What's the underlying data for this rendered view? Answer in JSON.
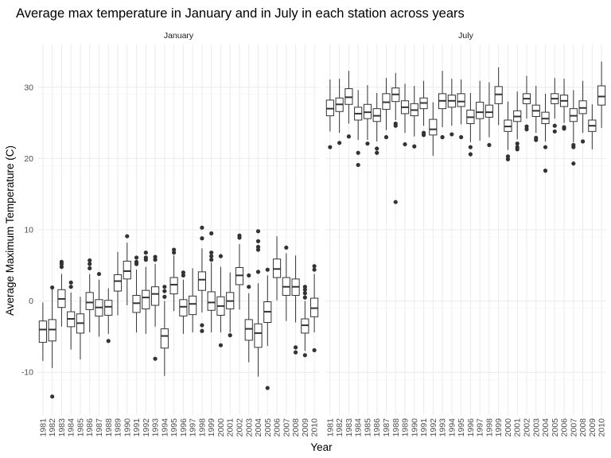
{
  "chart_data": {
    "type": "boxplot",
    "title": "Average max temperature in January and in July in each station across years",
    "xlabel": "Year",
    "ylabel": "Average Maximum Temperature (C)",
    "ylim": [
      -16,
      36
    ],
    "y_ticks": [
      -10,
      0,
      10,
      20,
      30
    ],
    "grid": true,
    "facets": [
      "January",
      "July"
    ],
    "years": [
      "1981",
      "1982",
      "1983",
      "1984",
      "1985",
      "1986",
      "1987",
      "1988",
      "1989",
      "1990",
      "1991",
      "1992",
      "1993",
      "1994",
      "1995",
      "1996",
      "1997",
      "1998",
      "1999",
      "2000",
      "2001",
      "2002",
      "2003",
      "2004",
      "2005",
      "2006",
      "2007",
      "2008",
      "2009",
      "2010"
    ],
    "series": [
      {
        "facet": "January",
        "boxes": [
          {
            "year": "1981",
            "q1": -5.8,
            "med": -4,
            "q3": -2.8,
            "lo": -8.4,
            "hi": -0.2,
            "out": []
          },
          {
            "year": "1982",
            "q1": -5.6,
            "med": -4,
            "q3": -2.6,
            "lo": -9.4,
            "hi": 1.8,
            "out": [
              -13.4,
              1.9
            ]
          },
          {
            "year": "1983",
            "q1": -0.9,
            "med": 0.3,
            "q3": 1.6,
            "lo": -3.6,
            "hi": 3.8,
            "out": [
              4.8,
              5.2,
              5.5
            ]
          },
          {
            "year": "1984",
            "q1": -3.6,
            "med": -2.5,
            "q3": -1.5,
            "lo": -6.8,
            "hi": 1.2,
            "out": [
              2,
              2.6
            ]
          },
          {
            "year": "1985",
            "q1": -4.5,
            "med": -3.1,
            "q3": -1.8,
            "lo": -8.2,
            "hi": 0.6,
            "out": []
          },
          {
            "year": "1986",
            "q1": -1.2,
            "med": -0.2,
            "q3": 1.2,
            "lo": -4.4,
            "hi": 3.8,
            "out": [
              4.6,
              5.2,
              5.7
            ]
          },
          {
            "year": "1987",
            "q1": -2.1,
            "med": -0.9,
            "q3": 0.2,
            "lo": -5,
            "hi": 3,
            "out": [
              3.8
            ]
          },
          {
            "year": "1988",
            "q1": -2,
            "med": -0.8,
            "q3": 0.1,
            "lo": -4.6,
            "hi": 1.8,
            "out": [
              -5.6
            ]
          },
          {
            "year": "1989",
            "q1": 1.4,
            "med": 2.8,
            "q3": 3.7,
            "lo": -2,
            "hi": 6.9,
            "out": []
          },
          {
            "year": "1990",
            "q1": 3.1,
            "med": 4.2,
            "q3": 5.6,
            "lo": -0.6,
            "hi": 8.2,
            "out": [
              9.1
            ]
          },
          {
            "year": "1991",
            "q1": -1.6,
            "med": -0.3,
            "q3": 0.8,
            "lo": -4.4,
            "hi": 4.4,
            "out": [
              5.2,
              5.5,
              6.1
            ]
          },
          {
            "year": "1992",
            "q1": -1.1,
            "med": 0.5,
            "q3": 1.5,
            "lo": -4.6,
            "hi": 4.8,
            "out": [
              5.8,
              6.1,
              6.8
            ]
          },
          {
            "year": "1993",
            "q1": -0.6,
            "med": 1,
            "q3": 2,
            "lo": -3.6,
            "hi": 5.2,
            "out": [
              5.8,
              6.2,
              -8.1
            ]
          },
          {
            "year": "1994",
            "q1": -6.6,
            "med": -4.9,
            "q3": -3.9,
            "lo": -10.5,
            "hi": 0,
            "out": [
              0.6,
              1.4,
              2
            ]
          },
          {
            "year": "1995",
            "q1": 1,
            "med": 2.3,
            "q3": 3.3,
            "lo": -1.4,
            "hi": 6.4,
            "out": [
              6.8,
              7.2
            ]
          },
          {
            "year": "1996",
            "q1": -2.1,
            "med": -0.8,
            "q3": 0.2,
            "lo": -4.6,
            "hi": 3,
            "out": [
              3.6,
              4
            ]
          },
          {
            "year": "1997",
            "q1": -1.9,
            "med": -0.4,
            "q3": 0.7,
            "lo": -4.4,
            "hi": 4.6,
            "out": []
          },
          {
            "year": "1998",
            "q1": 1.5,
            "med": 3,
            "q3": 4.1,
            "lo": -1.6,
            "hi": 7.4,
            "out": [
              -3.4,
              -4.2,
              8.8,
              10.3
            ]
          },
          {
            "year": "1999",
            "q1": -1.3,
            "med": -0.2,
            "q3": 1.3,
            "lo": -4.4,
            "hi": 5.4,
            "out": [
              5.8,
              6.3,
              6.8,
              9.5
            ]
          },
          {
            "year": "2000",
            "q1": -2,
            "med": -0.7,
            "q3": 0.6,
            "lo": -4.4,
            "hi": 4.8,
            "out": [
              6.3,
              -6.2
            ]
          },
          {
            "year": "2001",
            "q1": -1.1,
            "med": 0,
            "q3": 1.2,
            "lo": -4.4,
            "hi": 4,
            "out": [
              -4.8
            ]
          },
          {
            "year": "2002",
            "q1": 2.3,
            "med": 3.6,
            "q3": 4.7,
            "lo": -1.2,
            "hi": 8,
            "out": [
              8.9,
              9.2
            ]
          },
          {
            "year": "2003",
            "q1": -5.5,
            "med": -3.9,
            "q3": -2.6,
            "lo": -8.6,
            "hi": 1.1,
            "out": [
              2,
              3.6
            ]
          },
          {
            "year": "2004",
            "q1": -6.5,
            "med": -4.5,
            "q3": -3.2,
            "lo": -10.6,
            "hi": 2.5,
            "out": [
              4.1,
              7.2,
              7.6,
              8.4,
              9.8
            ]
          },
          {
            "year": "2005",
            "q1": -3,
            "med": -1.5,
            "q3": -0.1,
            "lo": -6.3,
            "hi": 3.6,
            "out": [
              4.4,
              -12.2
            ]
          },
          {
            "year": "2006",
            "q1": 3.3,
            "med": 4.5,
            "q3": 5.9,
            "lo": 0.1,
            "hi": 9.1,
            "out": []
          },
          {
            "year": "2007",
            "q1": 0.8,
            "med": 2,
            "q3": 3.3,
            "lo": -2.8,
            "hi": 6.7,
            "out": [
              7.5
            ]
          },
          {
            "year": "2008",
            "q1": 0.8,
            "med": 2,
            "q3": 3.1,
            "lo": -3,
            "hi": 6.4,
            "out": [
              -6.5,
              -7.2
            ]
          },
          {
            "year": "2009",
            "q1": -4.5,
            "med": -3.4,
            "q3": -2.5,
            "lo": -7,
            "hi": 0,
            "out": [
              -7.6,
              0.5,
              1.1,
              1.6,
              2
            ]
          },
          {
            "year": "2010",
            "q1": -2.2,
            "med": -1,
            "q3": 0.4,
            "lo": -4.4,
            "hi": 3.8,
            "out": [
              4.4,
              4.9,
              -6.9
            ]
          }
        ]
      },
      {
        "facet": "July",
        "boxes": [
          {
            "year": "1981",
            "q1": 26,
            "med": 27,
            "q3": 28.2,
            "lo": 23.8,
            "hi": 31.1,
            "out": [
              21.6
            ]
          },
          {
            "year": "1982",
            "q1": 26.6,
            "med": 27.6,
            "q3": 28.5,
            "lo": 23.6,
            "hi": 31.2,
            "out": [
              22.2
            ]
          },
          {
            "year": "1983",
            "q1": 27.6,
            "med": 28.6,
            "q3": 29.8,
            "lo": 24.9,
            "hi": 32.3,
            "out": [
              23.1
            ]
          },
          {
            "year": "1984",
            "q1": 25.4,
            "med": 26.3,
            "q3": 27.2,
            "lo": 22.6,
            "hi": 29.6,
            "out": [
              20.8,
              19.1
            ]
          },
          {
            "year": "1985",
            "q1": 25.6,
            "med": 26.5,
            "q3": 27.6,
            "lo": 22.6,
            "hi": 30.3,
            "out": [
              22.1
            ]
          },
          {
            "year": "1986",
            "q1": 25.2,
            "med": 26,
            "q3": 27,
            "lo": 22.4,
            "hi": 29.2,
            "out": [
              21.4,
              20.8
            ]
          },
          {
            "year": "1987",
            "q1": 26.9,
            "med": 27.9,
            "q3": 29.1,
            "lo": 24,
            "hi": 31.3,
            "out": [
              23
            ]
          },
          {
            "year": "1988",
            "q1": 28,
            "med": 29,
            "q3": 29.9,
            "lo": 25.4,
            "hi": 32,
            "out": [
              24.9,
              24.6,
              13.9
            ]
          },
          {
            "year": "1989",
            "q1": 26.3,
            "med": 27.2,
            "q3": 28.1,
            "lo": 23.6,
            "hi": 30.5,
            "out": [
              22
            ]
          },
          {
            "year": "1990",
            "q1": 26,
            "med": 26.8,
            "q3": 27.7,
            "lo": 23.1,
            "hi": 30.2,
            "out": [
              21.7
            ]
          },
          {
            "year": "1991",
            "q1": 27,
            "med": 27.8,
            "q3": 28.5,
            "lo": 24.6,
            "hi": 30.9,
            "out": [
              23.6,
              23.3
            ]
          },
          {
            "year": "1992",
            "q1": 23.3,
            "med": 24.1,
            "q3": 25.5,
            "lo": 20.4,
            "hi": 27.9,
            "out": []
          },
          {
            "year": "1993",
            "q1": 27,
            "med": 28.1,
            "q3": 29.1,
            "lo": 24.4,
            "hi": 32.3,
            "out": [
              23
            ]
          },
          {
            "year": "1994",
            "q1": 27.2,
            "med": 28.1,
            "q3": 28.9,
            "lo": 24.6,
            "hi": 31.2,
            "out": [
              23.4
            ]
          },
          {
            "year": "1995",
            "q1": 27.3,
            "med": 28,
            "q3": 29.1,
            "lo": 24.8,
            "hi": 31.1,
            "out": [
              23
            ]
          },
          {
            "year": "1996",
            "q1": 24.9,
            "med": 25.8,
            "q3": 26.8,
            "lo": 22.3,
            "hi": 29.2,
            "out": [
              21.6,
              20.6
            ]
          },
          {
            "year": "1997",
            "q1": 25.6,
            "med": 26.5,
            "q3": 27.9,
            "lo": 22.5,
            "hi": 30.9,
            "out": []
          },
          {
            "year": "1998",
            "q1": 25.8,
            "med": 26.5,
            "q3": 27.5,
            "lo": 23,
            "hi": 30.7,
            "out": [
              21.9
            ]
          },
          {
            "year": "1999",
            "q1": 27.7,
            "med": 29,
            "q3": 30.1,
            "lo": 24.7,
            "hi": 32.8,
            "out": []
          },
          {
            "year": "2000",
            "q1": 23.8,
            "med": 24.5,
            "q3": 25.4,
            "lo": 21.2,
            "hi": 28,
            "out": [
              20.3,
              19.9
            ]
          },
          {
            "year": "2001",
            "q1": 25.2,
            "med": 25.9,
            "q3": 26.7,
            "lo": 22.7,
            "hi": 29.4,
            "out": [
              22.1,
              21.6,
              21.3
            ]
          },
          {
            "year": "2002",
            "q1": 27.7,
            "med": 28.4,
            "q3": 29.1,
            "lo": 25.6,
            "hi": 31.6,
            "out": [
              24.5,
              24.1
            ]
          },
          {
            "year": "2003",
            "q1": 25.9,
            "med": 26.7,
            "q3": 27.5,
            "lo": 23.6,
            "hi": 30.2,
            "out": [
              22.9,
              22.6
            ]
          },
          {
            "year": "2004",
            "q1": 24.9,
            "med": 25.6,
            "q3": 26.5,
            "lo": 22.4,
            "hi": 29.1,
            "out": [
              21.6,
              18.3
            ]
          },
          {
            "year": "2005",
            "q1": 27.7,
            "med": 28.4,
            "q3": 29.1,
            "lo": 25.6,
            "hi": 31.3,
            "out": [
              24.6,
              23.8
            ]
          },
          {
            "year": "2006",
            "q1": 27.3,
            "med": 28.1,
            "q3": 28.9,
            "lo": 25,
            "hi": 31.2,
            "out": [
              24.4,
              24.2
            ]
          },
          {
            "year": "2007",
            "q1": 25.2,
            "med": 26,
            "q3": 27,
            "lo": 22.3,
            "hi": 29.6,
            "out": [
              21.9,
              21.6,
              19.3
            ]
          },
          {
            "year": "2008",
            "q1": 26.3,
            "med": 27.1,
            "q3": 28.1,
            "lo": 23.6,
            "hi": 30.9,
            "out": [
              22.4
            ]
          },
          {
            "year": "2009",
            "q1": 23.8,
            "med": 24.6,
            "q3": 25.4,
            "lo": 21.3,
            "hi": 27.6,
            "out": []
          },
          {
            "year": "2010",
            "q1": 27.5,
            "med": 28.7,
            "q3": 30.2,
            "lo": 24.3,
            "hi": 33.6,
            "out": []
          }
        ]
      }
    ]
  }
}
